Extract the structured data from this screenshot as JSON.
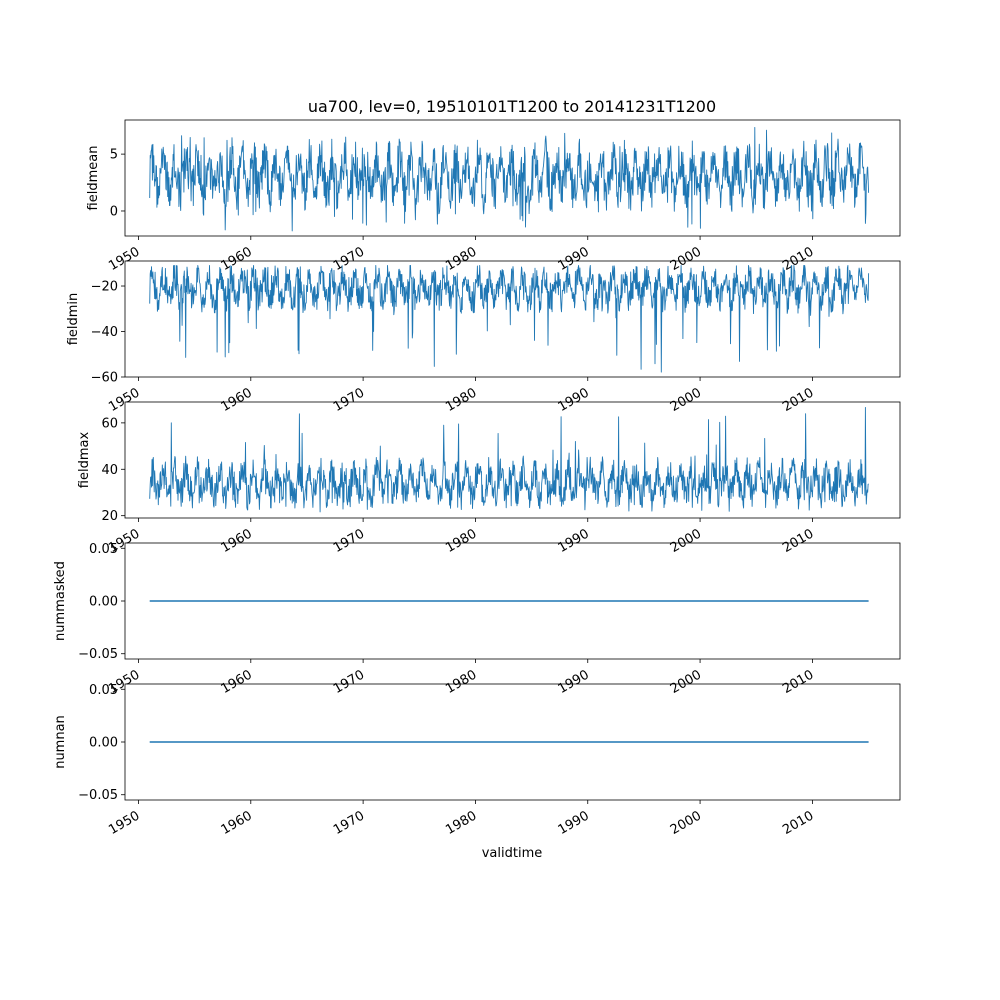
{
  "chart_data": {
    "title": "ua700, lev=0, 19510101T1200 to 20141231T1200",
    "xlabel": "validtime",
    "x_ticks": [
      1950,
      1960,
      1970,
      1980,
      1990,
      2000,
      2010
    ],
    "x_range": [
      1948.8,
      2017.8
    ],
    "x_data_range": [
      1951.0,
      2015.0
    ],
    "series_color": "#1f77b4",
    "grid": false,
    "panels": [
      {
        "type": "line",
        "ylabel": "fieldmean",
        "ylim": [
          -2.2,
          8.0
        ],
        "yticks": [
          0,
          5
        ],
        "ytick_labels": [
          "0",
          "5"
        ],
        "x_start": 1951.0,
        "x_end": 2015.0,
        "baseline": 2.7,
        "typical_low": 0.5,
        "typical_high": 5.6,
        "extreme_min": -1.8,
        "extreme_max": 7.4,
        "seed": 11
      },
      {
        "type": "line",
        "ylabel": "fieldmin",
        "ylim": [
          -60,
          -9
        ],
        "yticks": [
          -60,
          -40,
          -20
        ],
        "ytick_labels": [
          "−60",
          "−40",
          "−20"
        ],
        "x_start": 1951.0,
        "x_end": 2015.0,
        "baseline": -20,
        "typical_low": -30,
        "typical_high": -12,
        "extreme_min": -58,
        "extreme_max": -11,
        "seed": 23
      },
      {
        "type": "line",
        "ylabel": "fieldmax",
        "ylim": [
          19,
          69
        ],
        "yticks": [
          20,
          40,
          60
        ],
        "ytick_labels": [
          "20",
          "40",
          "60"
        ],
        "x_start": 1951.0,
        "x_end": 2015.0,
        "baseline": 31,
        "typical_low": 25,
        "typical_high": 43,
        "extreme_min": 21,
        "extreme_max": 67,
        "seed": 37
      },
      {
        "type": "line",
        "ylabel": "nummasked",
        "ylim": [
          -0.055,
          0.055
        ],
        "yticks": [
          -0.05,
          0.0,
          0.05
        ],
        "ytick_labels": [
          "−0.05",
          "0.00",
          "0.05"
        ],
        "x_start": 1951.0,
        "x_end": 2015.0,
        "constant": 0.0
      },
      {
        "type": "line",
        "ylabel": "numnan",
        "ylim": [
          -0.055,
          0.055
        ],
        "yticks": [
          -0.05,
          0.0,
          0.05
        ],
        "ytick_labels": [
          "−0.05",
          "0.00",
          "0.05"
        ],
        "x_start": 1951.0,
        "x_end": 2015.0,
        "constant": 0.0
      }
    ]
  }
}
